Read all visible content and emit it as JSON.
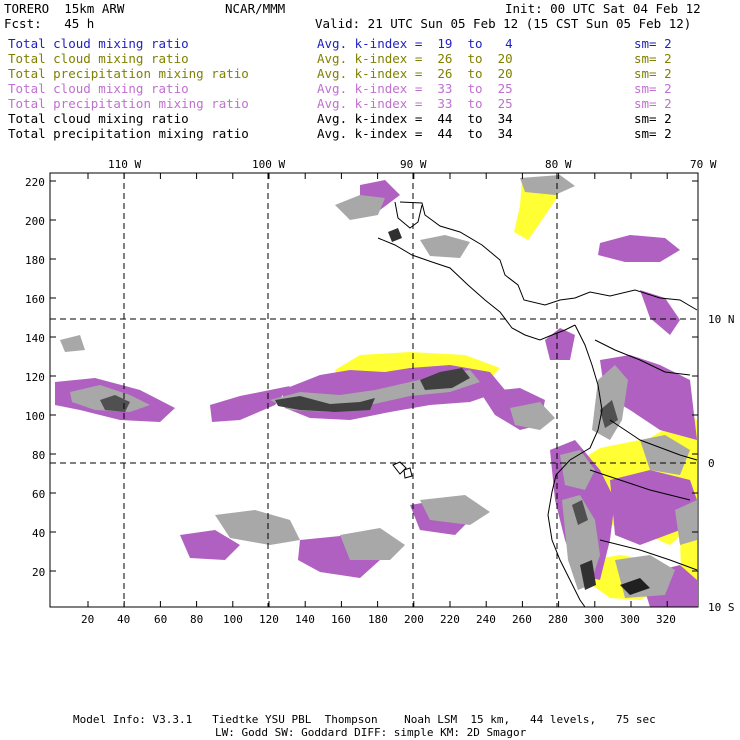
{
  "header": {
    "model": "TORERO  15km ARW",
    "org": "NCAR/MMM",
    "init": "Init: 00 UTC Sat 04 Feb 12",
    "fcst": "Fcst:   45 h",
    "valid": "Valid: 21 UTC Sun 05 Feb 12 (15 CST Sun 05 Feb 12)"
  },
  "legend": [
    {
      "field": "Total cloud mixing ratio",
      "kindex": "Avg. k-index =  19  to   4",
      "sm": "sm= 2",
      "color": "#1f1fbf"
    },
    {
      "field": "Total cloud mixing ratio",
      "kindex": "Avg. k-index =  26  to  20",
      "sm": "sm= 2",
      "color": "#808000"
    },
    {
      "field": "Total precipitation mixing ratio",
      "kindex": "Avg. k-index =  26  to  20",
      "sm": "sm= 2",
      "color": "#808000"
    },
    {
      "field": "Total cloud mixing ratio",
      "kindex": "Avg. k-index =  33  to  25",
      "sm": "sm= 2",
      "color": "#c070d0"
    },
    {
      "field": "Total precipitation mixing ratio",
      "kindex": "Avg. k-index =  33  to  25",
      "sm": "sm= 2",
      "color": "#c070d0"
    },
    {
      "field": "Total cloud mixing ratio",
      "kindex": "Avg. k-index =  44  to  34",
      "sm": "sm= 2",
      "color": "#000000"
    },
    {
      "field": "Total precipitation mixing ratio",
      "kindex": "Avg. k-index =  44  to  34",
      "sm": "sm= 2",
      "color": "#000000"
    }
  ],
  "top_lon_labels": [
    "110 W",
    "100 W",
    "90 W",
    "80 W",
    "70 W"
  ],
  "right_lat_labels": [
    "10 N",
    "0",
    "10 S"
  ],
  "y_ticks": [
    "220",
    "200",
    "180",
    "160",
    "140",
    "120",
    "100",
    "80",
    "60",
    "40",
    "20"
  ],
  "x_ticks": [
    "20",
    "40",
    "60",
    "80",
    "100",
    "120",
    "140",
    "160",
    "180",
    "200",
    "220",
    "240",
    "260",
    "280",
    "300",
    "320"
  ],
  "footer": {
    "line1": "Model Info: V3.3.1   Tiedtke YSU PBL  Thompson    Noah LSM  15 km,   44 levels,   75 sec",
    "line2": "LW: Godd SW: Goddard DIFF: simple KM: 2D Smagor"
  },
  "colors": {
    "yellow": "#ffff33",
    "magenta": "#b060c0",
    "lightgray": "#a8a8a8",
    "darkgray": "#606060",
    "black": "#202020"
  }
}
